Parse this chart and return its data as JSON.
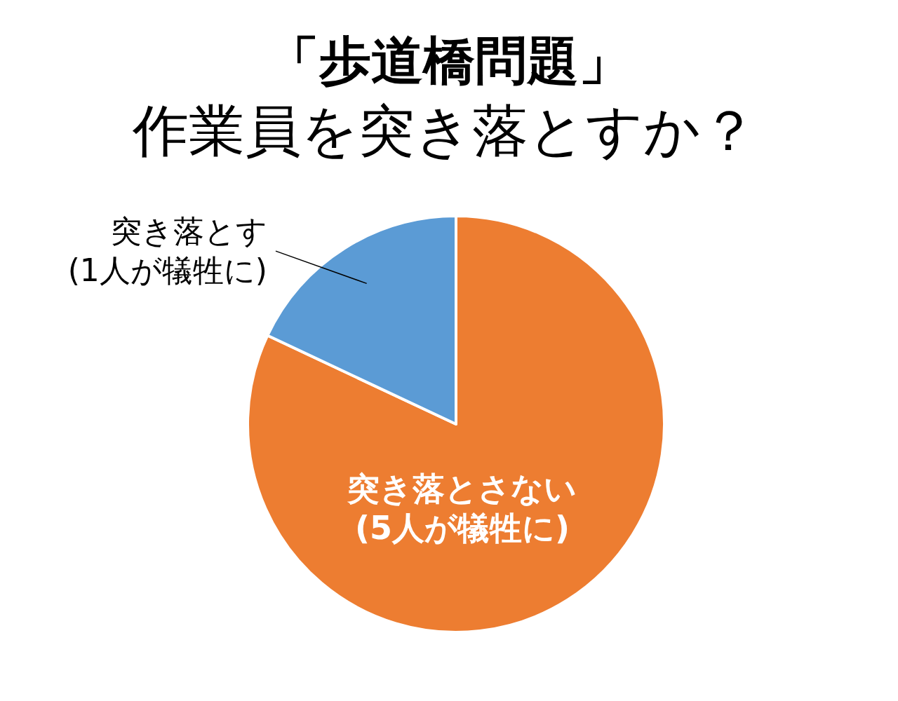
{
  "chart_data": {
    "type": "pie",
    "title": "「歩道橋問題」",
    "subtitle": "作業員を突き落とすか？",
    "categories": [
      "突き落とさない\n(5人が犠牲に)",
      "突き落とす\n(1人が犠牲に)"
    ],
    "values": [
      82,
      18
    ],
    "colors": [
      "#ed7d31",
      "#5b9bd5"
    ]
  }
}
